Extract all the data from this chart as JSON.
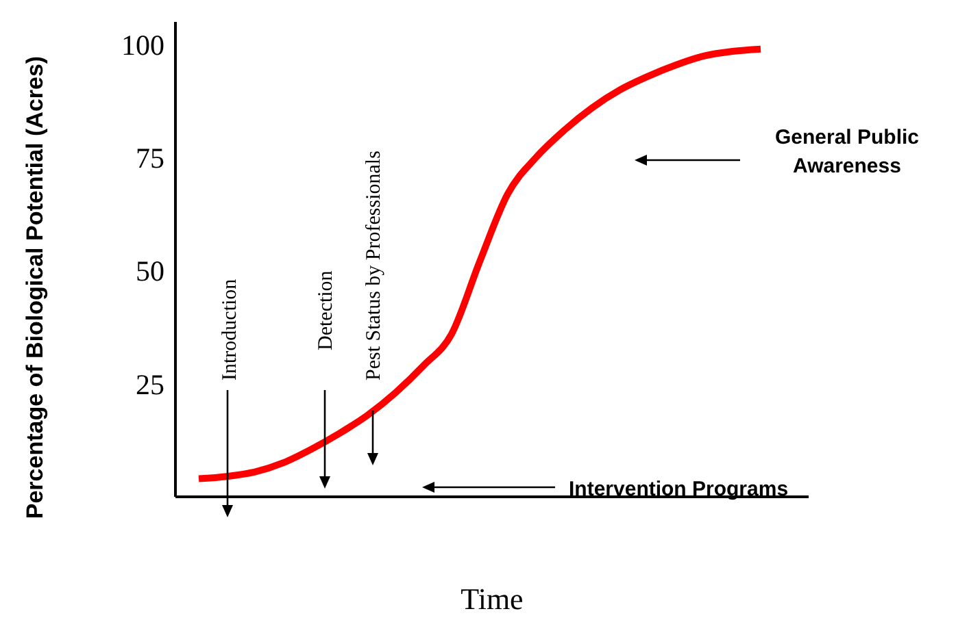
{
  "chart_data": {
    "type": "line",
    "xlabel": "Time",
    "ylabel": "Percentage of Biological Potential (Acres)",
    "categories": [
      null,
      null,
      null,
      null,
      null,
      null,
      null,
      null,
      null,
      null,
      null,
      null,
      null,
      null,
      null,
      null,
      null,
      null,
      null,
      null,
      null
    ],
    "series": [
      {
        "color": "#ff0000",
        "values": [
          4,
          4.5,
          5.5,
          7.5,
          10.5,
          14,
          18,
          23,
          29,
          36,
          52,
          67,
          75,
          81,
          86,
          90,
          93,
          95.5,
          97.5,
          98.5,
          99
        ]
      }
    ],
    "ylim": [
      0,
      105
    ],
    "yticks": [
      25,
      50,
      75,
      100
    ],
    "annotations": [
      "Introduction",
      "Detection",
      "Pest Status by Professionals",
      "Intervention Programs",
      "General Public Awareness"
    ]
  }
}
